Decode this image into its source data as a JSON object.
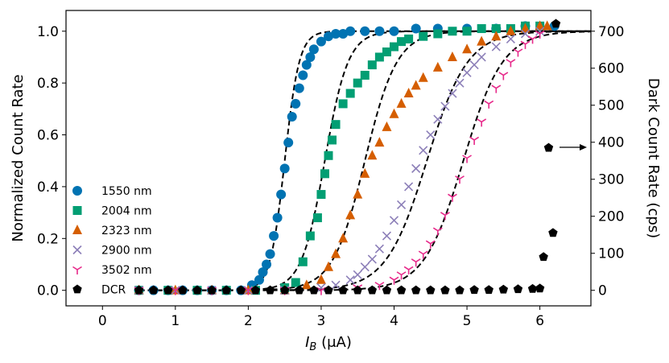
{
  "chart_data": {
    "type": "scatter",
    "title": "",
    "xlabel_main": "I",
    "xlabel_sub": "B",
    "xlabel_rest": " (μA)",
    "ylabel_left": "Normalized Count Rate",
    "ylabel_right": "Dark Count Rate (cps)",
    "xlim": [
      -0.5,
      6.7
    ],
    "ylim_left": [
      -0.06,
      1.08
    ],
    "ylim_right": [
      -42,
      756
    ],
    "x_ticks": [
      "0",
      "1",
      "2",
      "3",
      "4",
      "5",
      "6"
    ],
    "y_ticks_left": [
      "0.0",
      "0.2",
      "0.4",
      "0.6",
      "0.8",
      "1.0"
    ],
    "y_ticks_right": [
      "0",
      "100",
      "200",
      "300",
      "400",
      "500",
      "600",
      "700"
    ],
    "grid": false,
    "legend_position": "lower-left",
    "series": [
      {
        "name": "1550 nm",
        "marker": "circle",
        "color": "#0173b2",
        "axis": "left",
        "x": [
          0.5,
          0.7,
          0.9,
          1.1,
          1.3,
          1.5,
          1.7,
          1.9,
          2.05,
          2.15,
          2.2,
          2.25,
          2.3,
          2.35,
          2.4,
          2.45,
          2.5,
          2.55,
          2.6,
          2.65,
          2.7,
          2.75,
          2.8,
          2.85,
          2.9,
          3.0,
          3.1,
          3.2,
          3.3,
          3.4,
          3.6,
          3.8,
          4.0,
          4.3,
          4.6,
          5.0,
          5.4,
          5.8,
          6.2
        ],
        "y": [
          0.0,
          0.0,
          0.0,
          0.0,
          0.0,
          0.0,
          0.0,
          0.0,
          0.02,
          0.04,
          0.07,
          0.1,
          0.14,
          0.21,
          0.28,
          0.37,
          0.47,
          0.57,
          0.67,
          0.72,
          0.78,
          0.83,
          0.87,
          0.9,
          0.93,
          0.96,
          0.98,
          0.99,
          0.99,
          1.0,
          1.0,
          1.0,
          1.0,
          1.01,
          1.01,
          1.01,
          1.01,
          1.02,
          1.02
        ]
      },
      {
        "name": "2004 nm",
        "marker": "square",
        "color": "#029e73",
        "axis": "left",
        "x": [
          0.5,
          0.9,
          1.3,
          1.7,
          2.1,
          2.5,
          2.65,
          2.75,
          2.85,
          2.95,
          3.0,
          3.05,
          3.1,
          3.15,
          3.2,
          3.3,
          3.4,
          3.5,
          3.6,
          3.7,
          3.8,
          3.9,
          4.0,
          4.1,
          4.2,
          4.4,
          4.6,
          4.8,
          5.0,
          5.2,
          5.4,
          5.6,
          5.8,
          6.0
        ],
        "y": [
          0.0,
          0.0,
          0.0,
          0.0,
          0.0,
          0.01,
          0.03,
          0.11,
          0.21,
          0.28,
          0.37,
          0.45,
          0.52,
          0.58,
          0.64,
          0.72,
          0.76,
          0.8,
          0.83,
          0.87,
          0.9,
          0.92,
          0.94,
          0.96,
          0.97,
          0.98,
          0.99,
          1.0,
          1.0,
          1.01,
          1.01,
          1.01,
          1.02,
          1.02
        ]
      },
      {
        "name": "2323 nm",
        "marker": "triangle",
        "color": "#d55e00",
        "axis": "left",
        "x": [
          0.5,
          1.0,
          1.5,
          2.0,
          2.5,
          2.8,
          3.0,
          3.1,
          3.2,
          3.3,
          3.4,
          3.5,
          3.6,
          3.7,
          3.8,
          3.9,
          4.0,
          4.1,
          4.2,
          4.3,
          4.4,
          4.6,
          4.8,
          5.0,
          5.2,
          5.4,
          5.6,
          5.8,
          6.0,
          6.1
        ],
        "y": [
          0.0,
          0.0,
          0.0,
          0.0,
          0.0,
          0.02,
          0.04,
          0.09,
          0.14,
          0.2,
          0.29,
          0.37,
          0.45,
          0.52,
          0.57,
          0.63,
          0.68,
          0.72,
          0.76,
          0.79,
          0.82,
          0.86,
          0.9,
          0.93,
          0.96,
          0.98,
          1.0,
          1.01,
          1.02,
          1.02
        ]
      },
      {
        "name": "2900 nm",
        "marker": "x",
        "color": "#8c7fb8",
        "axis": "left",
        "x": [
          0.5,
          1.0,
          1.5,
          2.0,
          2.5,
          3.0,
          3.2,
          3.4,
          3.5,
          3.6,
          3.7,
          3.8,
          3.9,
          4.0,
          4.1,
          4.2,
          4.3,
          4.4,
          4.5,
          4.6,
          4.7,
          4.8,
          4.9,
          5.0,
          5.1,
          5.2,
          5.4,
          5.6,
          5.8,
          6.0
        ],
        "y": [
          0.0,
          0.0,
          0.0,
          0.0,
          0.0,
          0.01,
          0.02,
          0.04,
          0.06,
          0.09,
          0.12,
          0.16,
          0.21,
          0.27,
          0.33,
          0.4,
          0.47,
          0.54,
          0.6,
          0.66,
          0.71,
          0.76,
          0.8,
          0.84,
          0.87,
          0.9,
          0.94,
          0.97,
          0.99,
          1.0
        ]
      },
      {
        "name": "3502 nm",
        "marker": "tri_down",
        "color": "#e7298a",
        "axis": "left",
        "x": [
          0.5,
          1.0,
          1.5,
          2.0,
          2.5,
          3.0,
          3.5,
          3.8,
          4.0,
          4.1,
          4.2,
          4.3,
          4.4,
          4.5,
          4.6,
          4.7,
          4.8,
          4.9,
          5.0,
          5.1,
          5.2,
          5.3,
          5.4,
          5.5,
          5.6,
          5.7,
          5.8,
          5.9,
          6.0
        ],
        "y": [
          0.0,
          0.0,
          0.0,
          0.0,
          0.0,
          0.0,
          0.01,
          0.02,
          0.04,
          0.06,
          0.08,
          0.11,
          0.14,
          0.18,
          0.23,
          0.29,
          0.36,
          0.43,
          0.51,
          0.58,
          0.65,
          0.72,
          0.78,
          0.83,
          0.88,
          0.92,
          0.95,
          0.97,
          0.99
        ]
      },
      {
        "name": "DCR",
        "marker": "pentagon",
        "color": "#000000",
        "axis": "right",
        "x": [
          0.5,
          0.7,
          0.9,
          1.1,
          1.3,
          1.5,
          1.7,
          1.9,
          2.1,
          2.3,
          2.5,
          2.7,
          2.9,
          3.1,
          3.3,
          3.5,
          3.7,
          3.9,
          4.1,
          4.3,
          4.5,
          4.7,
          4.9,
          5.1,
          5.3,
          5.5,
          5.7,
          5.9,
          6.0,
          6.05,
          6.12,
          6.18,
          6.22
        ],
        "y": [
          0,
          0,
          0,
          0,
          0,
          0,
          0,
          0,
          0,
          0,
          0,
          0,
          0,
          0,
          0,
          0,
          0,
          0,
          0,
          0,
          0,
          0,
          0,
          1,
          1,
          2,
          3,
          4,
          5,
          90,
          385,
          155,
          720
        ]
      }
    ],
    "fits": [
      {
        "series": "1550 nm",
        "center": 2.5,
        "width": 0.1
      },
      {
        "series": "2004 nm",
        "center": 3.05,
        "width": 0.16
      },
      {
        "series": "2323 nm",
        "center": 3.6,
        "width": 0.22
      },
      {
        "series": "2900 nm",
        "center": 4.45,
        "width": 0.28
      },
      {
        "series": "3502 nm",
        "center": 4.95,
        "width": 0.27
      }
    ]
  }
}
